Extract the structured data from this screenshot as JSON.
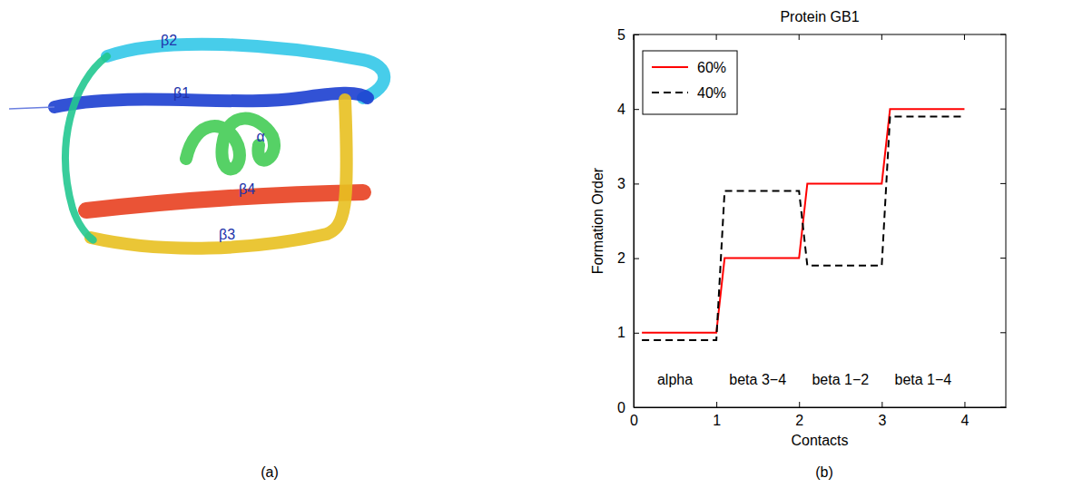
{
  "panel_a": {
    "caption": "(a)",
    "labels": [
      "β2",
      "β1",
      "α",
      "β4",
      "β3"
    ]
  },
  "chart_data": {
    "type": "line",
    "title": "Protein GB1",
    "caption": "(b)",
    "xlabel": "Contacts",
    "ylabel": "Formation Order",
    "xlim": [
      0,
      4.5
    ],
    "xticks": [
      0,
      1,
      2,
      3,
      4
    ],
    "ylim": [
      0,
      5
    ],
    "yticks": [
      0,
      1,
      2,
      3,
      4,
      5
    ],
    "legend": "upper left",
    "series": [
      {
        "name": "60%",
        "color": "#ff0000",
        "line_style": "solid",
        "x": [
          0.1,
          1,
          1.1,
          2,
          2.1,
          3,
          3.1,
          4
        ],
        "values": [
          1,
          1,
          2,
          2,
          3,
          3,
          4,
          4
        ]
      },
      {
        "name": "40%",
        "color": "#000000",
        "line_style": "dashed",
        "x": [
          0.1,
          1,
          1.1,
          2,
          2.1,
          3,
          3.1,
          4
        ],
        "values": [
          0.9,
          0.9,
          2.9,
          2.9,
          1.9,
          1.9,
          3.9,
          3.9
        ]
      }
    ],
    "annotations": [
      {
        "text": "alpha",
        "x": 0.5,
        "y": 0.3
      },
      {
        "text": "beta 3−4",
        "x": 1.5,
        "y": 0.3
      },
      {
        "text": "beta 1−2",
        "x": 2.5,
        "y": 0.3
      },
      {
        "text": "beta 1−4",
        "x": 3.5,
        "y": 0.3
      }
    ]
  }
}
